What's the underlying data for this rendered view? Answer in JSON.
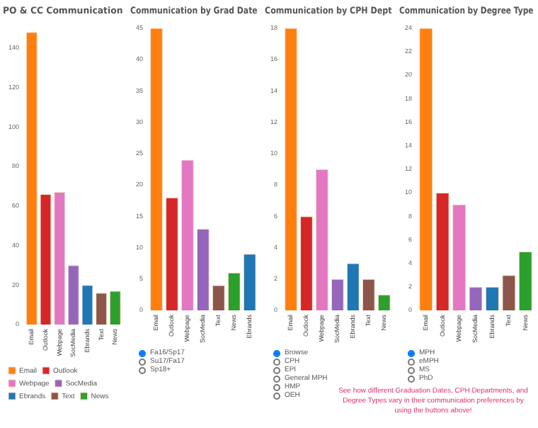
{
  "chart_data": [
    {
      "type": "bar",
      "title": "PO & CC Communication",
      "categories": [
        "Email",
        "Outlook",
        "Webpage",
        "SocMedia",
        "Ebrands",
        "Text",
        "News"
      ],
      "series": [
        {
          "name": "Email",
          "color": "#ff7f0e",
          "values": [
            148,
            null,
            null,
            null,
            null,
            null,
            null
          ]
        },
        {
          "name": "Outlook",
          "color": "#d62728",
          "values": [
            null,
            66,
            null,
            null,
            null,
            null,
            null
          ]
        },
        {
          "name": "Webpage",
          "color": "#e377c2",
          "values": [
            null,
            null,
            67,
            null,
            null,
            null,
            null
          ]
        },
        {
          "name": "SocMedia",
          "color": "#9467bd",
          "values": [
            null,
            null,
            null,
            30,
            null,
            null,
            null
          ]
        },
        {
          "name": "Ebrands",
          "color": "#1f77b4",
          "values": [
            null,
            null,
            null,
            null,
            20,
            null,
            null
          ]
        },
        {
          "name": "Text",
          "color": "#8c564b",
          "values": [
            null,
            null,
            null,
            null,
            null,
            16,
            null
          ]
        },
        {
          "name": "News",
          "color": "#2ca02c",
          "values": [
            null,
            null,
            null,
            null,
            null,
            null,
            17
          ]
        }
      ],
      "ylim": [
        0,
        150
      ],
      "yticks": [
        0,
        20,
        40,
        60,
        80,
        100,
        120,
        140
      ],
      "legend": "bottom left",
      "annotations": [
        "See how different Graduation Dates,  CPH Departments, and Degree Types vary in their communication preferences by using the buttons above!"
      ]
    },
    {
      "type": "bar",
      "title": "Communication by Grad Date",
      "categories": [
        "Email",
        "Outlook",
        "Webpage",
        "SocMedia",
        "Text",
        "News",
        "Ebrands"
      ],
      "values": [
        45,
        18,
        24,
        13,
        4,
        6,
        9
      ],
      "colors": [
        "#ff7f0e",
        "#d62728",
        "#e377c2",
        "#9467bd",
        "#8c564b",
        "#2ca02c",
        "#1f77b4"
      ],
      "ylim": [
        0,
        45
      ],
      "yticks": [
        0,
        5,
        10,
        15,
        20,
        25,
        30,
        35,
        40,
        45
      ],
      "annotations": [
        "Fa16/Sp17",
        "Su17/Fa17",
        "Sp18+"
      ]
    },
    {
      "type": "bar",
      "title": "Communication by CPH Dept",
      "categories": [
        "Email",
        "Outlook",
        "Webpage",
        "SocMedia",
        "Ebrands",
        "Text",
        "News"
      ],
      "values": [
        18,
        6,
        9,
        2,
        3,
        2,
        1
      ],
      "colors": [
        "#ff7f0e",
        "#d62728",
        "#e377c2",
        "#9467bd",
        "#1f77b4",
        "#8c564b",
        "#2ca02c"
      ],
      "ylim": [
        0,
        18
      ],
      "yticks": [
        0,
        2,
        4,
        6,
        8,
        10,
        12,
        14,
        16,
        18
      ],
      "annotations": [
        "Browse",
        "CPH",
        "EPI",
        "General MPH",
        "HMP",
        "OEH"
      ]
    },
    {
      "type": "bar",
      "title": "Communication by Degree Type",
      "categories": [
        "Email",
        "Outlook",
        "Webpage",
        "SocMedia",
        "Ebrands",
        "Text",
        "News"
      ],
      "values": [
        24,
        10,
        9,
        2,
        2,
        3,
        5
      ],
      "colors": [
        "#ff7f0e",
        "#d62728",
        "#e377c2",
        "#9467bd",
        "#1f77b4",
        "#8c564b",
        "#2ca02c"
      ],
      "ylim": [
        0,
        24
      ],
      "yticks": [
        0,
        2,
        4,
        6,
        8,
        10,
        12,
        14,
        16,
        18,
        20,
        22,
        24
      ],
      "annotations": [
        "MPH",
        "eMPH",
        "MS",
        "PhD"
      ]
    }
  ]
}
